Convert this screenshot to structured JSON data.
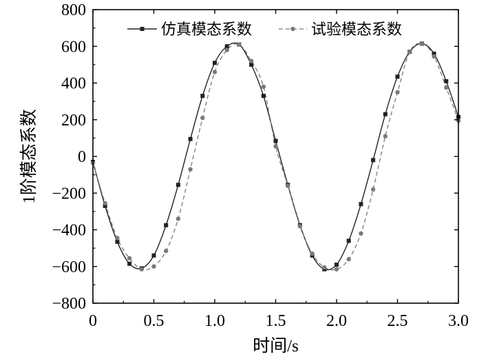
{
  "chart_data": {
    "type": "line",
    "title": "",
    "xlabel": "时间/s",
    "ylabel": "1阶模态系数",
    "xlim": [
      0,
      3.0
    ],
    "ylim": [
      -800,
      800
    ],
    "x_ticks": [
      0,
      0.5,
      1.0,
      1.5,
      2.0,
      2.5,
      3.0
    ],
    "x_tick_labels": [
      "0",
      "0.5",
      "1.0",
      "1.5",
      "2.0",
      "2.5",
      "3.0"
    ],
    "y_ticks": [
      -800,
      -600,
      -400,
      -200,
      0,
      200,
      400,
      600,
      800
    ],
    "y_tick_labels": [
      "−800",
      "−600",
      "−400",
      "−200",
      "0",
      "200",
      "400",
      "600",
      "800"
    ],
    "grid": false,
    "legend_position": "top",
    "series": [
      {
        "name": "仿真模态系数",
        "style": "solid",
        "marker": "square",
        "color": "#222222",
        "x": [
          0,
          0.1,
          0.2,
          0.3,
          0.4,
          0.5,
          0.6,
          0.7,
          0.8,
          0.9,
          1.0,
          1.1,
          1.2,
          1.3,
          1.4,
          1.5,
          1.6,
          1.7,
          1.8,
          1.9,
          2.0,
          2.1,
          2.2,
          2.3,
          2.4,
          2.5,
          2.6,
          2.7,
          2.8,
          2.9,
          3.0
        ],
        "y": [
          -30,
          -270,
          -465,
          -585,
          -610,
          -540,
          -375,
          -155,
          95,
          330,
          510,
          600,
          610,
          500,
          330,
          85,
          -155,
          -375,
          -540,
          -615,
          -590,
          -460,
          -260,
          -20,
          230,
          435,
          570,
          615,
          560,
          410,
          215
        ]
      },
      {
        "name": "试验模态系数",
        "style": "dashed",
        "marker": "circle",
        "color": "#7a7a7a",
        "x": [
          0,
          0.1,
          0.2,
          0.3,
          0.4,
          0.5,
          0.6,
          0.7,
          0.8,
          0.9,
          1.0,
          1.1,
          1.2,
          1.3,
          1.4,
          1.5,
          1.6,
          1.7,
          1.8,
          1.9,
          2.0,
          2.1,
          2.2,
          2.3,
          2.4,
          2.5,
          2.6,
          2.7,
          2.8,
          2.9,
          3.0
        ],
        "y": [
          -35,
          -255,
          -445,
          -555,
          -615,
          -600,
          -515,
          -340,
          -70,
          210,
          460,
          580,
          610,
          520,
          380,
          55,
          -160,
          -380,
          -530,
          -605,
          -615,
          -560,
          -420,
          -180,
          110,
          350,
          570,
          615,
          545,
          375,
          195
        ]
      }
    ]
  },
  "colors": {
    "axis": "#000000",
    "background": "#ffffff"
  }
}
